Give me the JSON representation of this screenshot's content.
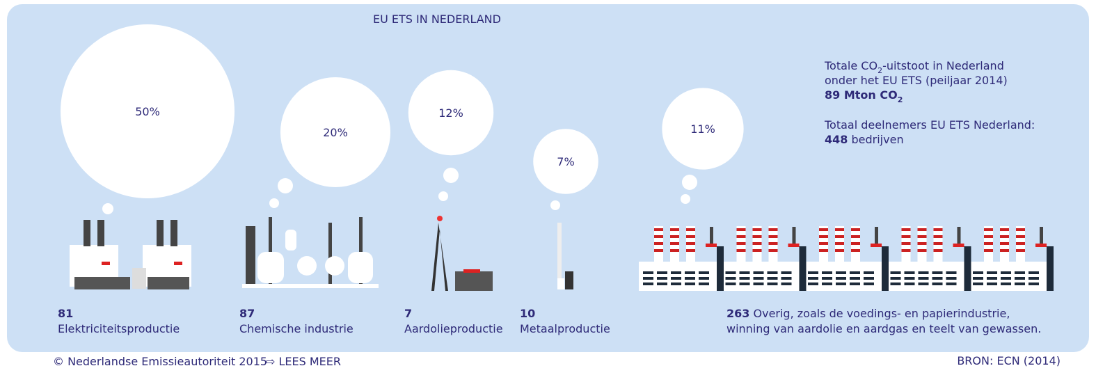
{
  "title": "EU ETS IN NEDERLAND",
  "summary": {
    "emissions_text": [
      "Totale CO",
      "2",
      "-uitstoot in Nederland"
    ],
    "emissions_text2": "onder het EU ETS (peiljaar 2014)",
    "emissions_value": [
      "89 Mton CO",
      "2"
    ],
    "participants_text": "Totaal deelnemers EU ETS Nederland:",
    "participants_count": 448,
    "participants_unit": "bedrijven"
  },
  "sectors": [
    {
      "share": 50,
      "share_label": "50%",
      "count": 81,
      "label": [
        "Elektriciteitsproductie"
      ]
    },
    {
      "share": 20,
      "share_label": "20%",
      "count": 87,
      "label": [
        "Chemische industrie"
      ]
    },
    {
      "share": 12,
      "share_label": "12%",
      "count": 7,
      "label": [
        "Aardolieproductie"
      ]
    },
    {
      "share": 7,
      "share_label": "7%",
      "count": 10,
      "label": [
        "Metaalproductie"
      ]
    },
    {
      "share": 11,
      "share_label": "11%",
      "count": 263,
      "label": [
        "Overig, zoals de voedings- en papierindustrie,",
        "winning van aardolie en aardgas en teelt van gewassen."
      ]
    }
  ],
  "footer": {
    "copyright": "© Nederlandse Emissieautoriteit 2015",
    "link": "⇨ LEES MEER",
    "source": "BRON: ECN (2014)"
  }
}
